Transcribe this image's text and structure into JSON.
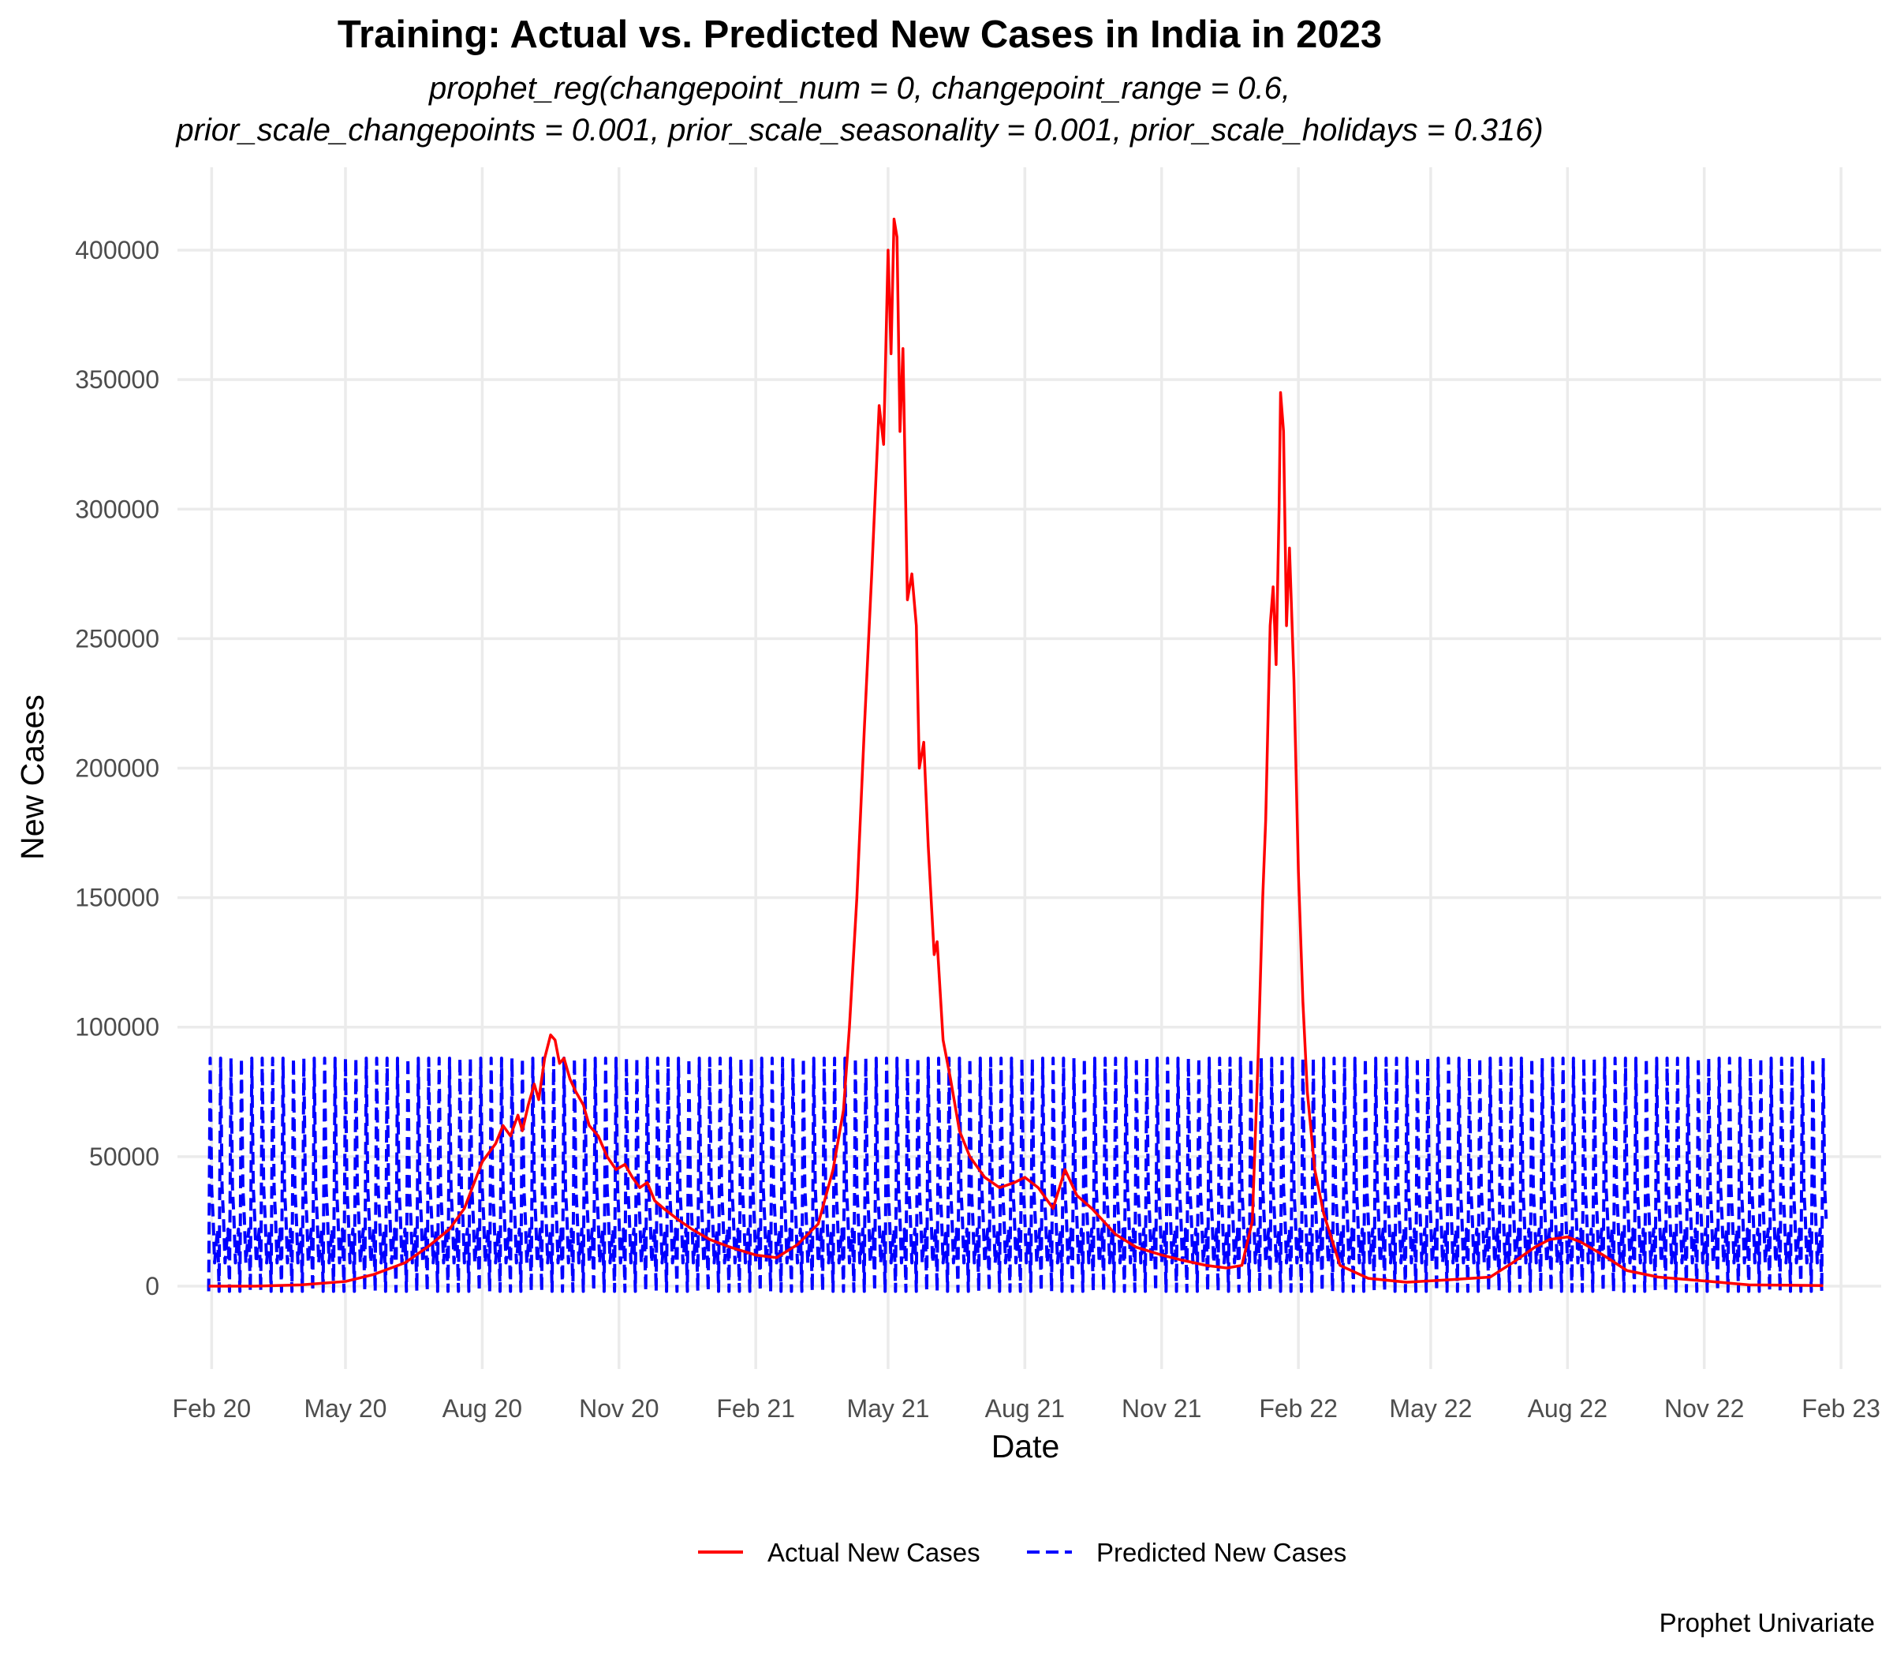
{
  "chart_data": {
    "type": "line",
    "title": "Training: Actual vs. Predicted New Cases in India in 2023",
    "subtitle_lines": [
      "prophet_reg(changepoint_num = 0, changepoint_range = 0.6,",
      "prior_scale_changepoints = 0.001, prior_scale_seasonality = 0.001, prior_scale_holidays = 0.316)"
    ],
    "xlabel": "Date",
    "ylabel": "New Cases",
    "caption": "Prophet Univariate",
    "legend_position": "bottom",
    "grid": true,
    "xlim": [
      "2020-01-09",
      "2023-02-28"
    ],
    "ylim": [
      -32000,
      432000
    ],
    "x_ticks": [
      {
        "date": "2020-02-01",
        "label": "Feb 20"
      },
      {
        "date": "2020-05-01",
        "label": "May 20"
      },
      {
        "date": "2020-08-01",
        "label": "Aug 20"
      },
      {
        "date": "2020-11-01",
        "label": "Nov 20"
      },
      {
        "date": "2021-02-01",
        "label": "Feb 21"
      },
      {
        "date": "2021-05-01",
        "label": "May 21"
      },
      {
        "date": "2021-08-01",
        "label": "Aug 21"
      },
      {
        "date": "2021-11-01",
        "label": "Nov 21"
      },
      {
        "date": "2022-02-01",
        "label": "Feb 22"
      },
      {
        "date": "2022-05-01",
        "label": "May 22"
      },
      {
        "date": "2022-08-01",
        "label": "Aug 22"
      },
      {
        "date": "2022-11-01",
        "label": "Nov 22"
      },
      {
        "date": "2023-02-01",
        "label": "Feb 23"
      }
    ],
    "y_ticks": [
      0,
      50000,
      100000,
      150000,
      200000,
      250000,
      300000,
      350000,
      400000
    ],
    "y_tick_labels": [
      "0",
      "50000",
      "100000",
      "150000",
      "200000",
      "250000",
      "300000",
      "350000",
      "400000"
    ],
    "series": [
      {
        "name": "Actual New Cases",
        "color": "#ff0000",
        "style": "solid",
        "points": [
          [
            "2020-01-30",
            0
          ],
          [
            "2020-03-01",
            0
          ],
          [
            "2020-04-01",
            500
          ],
          [
            "2020-05-01",
            1800
          ],
          [
            "2020-05-20",
            4500
          ],
          [
            "2020-06-10",
            9000
          ],
          [
            "2020-06-25",
            15000
          ],
          [
            "2020-07-10",
            22000
          ],
          [
            "2020-07-20",
            30000
          ],
          [
            "2020-08-01",
            48000
          ],
          [
            "2020-08-10",
            55000
          ],
          [
            "2020-08-15",
            62000
          ],
          [
            "2020-08-20",
            58000
          ],
          [
            "2020-08-25",
            66000
          ],
          [
            "2020-08-28",
            60000
          ],
          [
            "2020-09-01",
            70000
          ],
          [
            "2020-09-05",
            78000
          ],
          [
            "2020-09-08",
            72000
          ],
          [
            "2020-09-12",
            88000
          ],
          [
            "2020-09-16",
            97000
          ],
          [
            "2020-09-19",
            95000
          ],
          [
            "2020-09-22",
            86000
          ],
          [
            "2020-09-25",
            88000
          ],
          [
            "2020-09-29",
            80000
          ],
          [
            "2020-10-03",
            75000
          ],
          [
            "2020-10-08",
            70000
          ],
          [
            "2020-10-12",
            62000
          ],
          [
            "2020-10-18",
            58000
          ],
          [
            "2020-10-24",
            50000
          ],
          [
            "2020-10-30",
            45000
          ],
          [
            "2020-11-05",
            47000
          ],
          [
            "2020-11-10",
            42000
          ],
          [
            "2020-11-15",
            38000
          ],
          [
            "2020-11-20",
            40000
          ],
          [
            "2020-11-25",
            33000
          ],
          [
            "2020-12-01",
            30000
          ],
          [
            "2020-12-10",
            26000
          ],
          [
            "2020-12-20",
            22000
          ],
          [
            "2021-01-01",
            18000
          ],
          [
            "2021-01-15",
            15000
          ],
          [
            "2021-02-01",
            12000
          ],
          [
            "2021-02-15",
            11000
          ],
          [
            "2021-03-01",
            16000
          ],
          [
            "2021-03-15",
            24000
          ],
          [
            "2021-03-25",
            45000
          ],
          [
            "2021-04-01",
            68000
          ],
          [
            "2021-04-05",
            100000
          ],
          [
            "2021-04-10",
            150000
          ],
          [
            "2021-04-15",
            215000
          ],
          [
            "2021-04-20",
            275000
          ],
          [
            "2021-04-25",
            340000
          ],
          [
            "2021-04-28",
            325000
          ],
          [
            "2021-05-01",
            400000
          ],
          [
            "2021-05-03",
            360000
          ],
          [
            "2021-05-05",
            412000
          ],
          [
            "2021-05-07",
            405000
          ],
          [
            "2021-05-09",
            330000
          ],
          [
            "2021-05-11",
            362000
          ],
          [
            "2021-05-14",
            265000
          ],
          [
            "2021-05-17",
            275000
          ],
          [
            "2021-05-20",
            255000
          ],
          [
            "2021-05-22",
            200000
          ],
          [
            "2021-05-25",
            210000
          ],
          [
            "2021-05-28",
            170000
          ],
          [
            "2021-06-01",
            128000
          ],
          [
            "2021-06-03",
            133000
          ],
          [
            "2021-06-07",
            95000
          ],
          [
            "2021-06-12",
            80000
          ],
          [
            "2021-06-18",
            60000
          ],
          [
            "2021-06-25",
            50000
          ],
          [
            "2021-07-05",
            42000
          ],
          [
            "2021-07-15",
            38000
          ],
          [
            "2021-07-25",
            40000
          ],
          [
            "2021-08-01",
            42000
          ],
          [
            "2021-08-10",
            38000
          ],
          [
            "2021-08-20",
            30000
          ],
          [
            "2021-08-28",
            45000
          ],
          [
            "2021-09-05",
            35000
          ],
          [
            "2021-09-15",
            30000
          ],
          [
            "2021-10-01",
            20000
          ],
          [
            "2021-10-15",
            15000
          ],
          [
            "2021-11-01",
            12000
          ],
          [
            "2021-11-15",
            10000
          ],
          [
            "2021-12-01",
            8000
          ],
          [
            "2021-12-15",
            7000
          ],
          [
            "2021-12-25",
            8000
          ],
          [
            "2022-01-01",
            25000
          ],
          [
            "2022-01-05",
            90000
          ],
          [
            "2022-01-08",
            150000
          ],
          [
            "2022-01-10",
            180000
          ],
          [
            "2022-01-13",
            255000
          ],
          [
            "2022-01-15",
            270000
          ],
          [
            "2022-01-17",
            240000
          ],
          [
            "2022-01-19",
            300000
          ],
          [
            "2022-01-20",
            345000
          ],
          [
            "2022-01-22",
            330000
          ],
          [
            "2022-01-24",
            255000
          ],
          [
            "2022-01-26",
            285000
          ],
          [
            "2022-01-29",
            234000
          ],
          [
            "2022-02-01",
            160000
          ],
          [
            "2022-02-04",
            110000
          ],
          [
            "2022-02-07",
            75000
          ],
          [
            "2022-02-12",
            45000
          ],
          [
            "2022-02-18",
            28000
          ],
          [
            "2022-03-01",
            8000
          ],
          [
            "2022-03-20",
            3000
          ],
          [
            "2022-04-15",
            1500
          ],
          [
            "2022-05-15",
            2500
          ],
          [
            "2022-06-10",
            3500
          ],
          [
            "2022-06-25",
            9000
          ],
          [
            "2022-07-10",
            15000
          ],
          [
            "2022-07-20",
            18000
          ],
          [
            "2022-08-01",
            19000
          ],
          [
            "2022-08-10",
            17000
          ],
          [
            "2022-08-25",
            12000
          ],
          [
            "2022-09-10",
            6000
          ],
          [
            "2022-10-01",
            3500
          ],
          [
            "2022-11-01",
            2000
          ],
          [
            "2022-12-01",
            500
          ],
          [
            "2023-01-20",
            200
          ]
        ]
      },
      {
        "name": "Predicted New Cases",
        "color": "#0000ff",
        "style": "dashed",
        "weekly_pattern": [
          -2000,
          88000,
          38000,
          26000,
          9000,
          16000,
          22000
        ],
        "start": "2020-01-30",
        "end": "2023-01-22"
      }
    ]
  }
}
